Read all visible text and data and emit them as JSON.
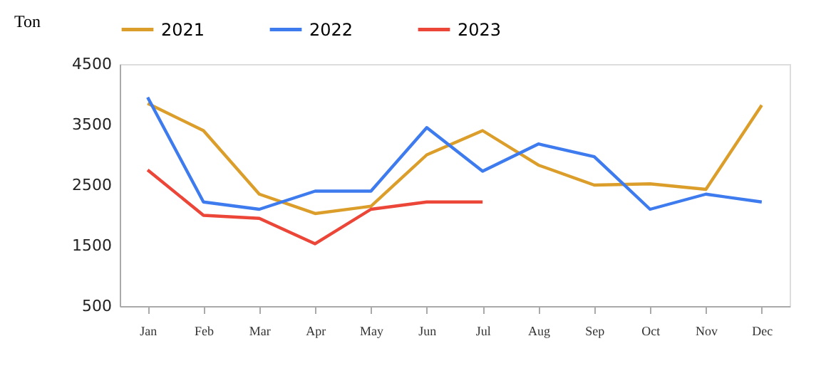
{
  "chart_data": {
    "type": "line",
    "ylabel": "Ton",
    "categories": [
      "Jan",
      "Feb",
      "Mar",
      "Apr",
      "May",
      "Jun",
      "Jul",
      "Aug",
      "Sep",
      "Oct",
      "Nov",
      "Dec"
    ],
    "series": [
      {
        "name": "2021",
        "color": "#dc9e2a",
        "values": [
          3850,
          3400,
          2350,
          2030,
          2150,
          3000,
          3400,
          2830,
          2500,
          2520,
          2430,
          3820
        ]
      },
      {
        "name": "2022",
        "color": "#3d7bef",
        "values": [
          3950,
          2220,
          2100,
          2400,
          2400,
          3450,
          2730,
          3180,
          2970,
          2100,
          2350,
          2220
        ]
      },
      {
        "name": "2023",
        "color": "#ec4638",
        "values": [
          2750,
          2000,
          1950,
          1530,
          2100,
          2220,
          2220,
          null,
          null,
          null,
          null,
          null
        ]
      }
    ],
    "ylim": [
      500,
      4500
    ],
    "yticks": [
      500,
      1500,
      2500,
      3500,
      4500
    ],
    "grid": false,
    "legend": "top",
    "marker": "none",
    "line_style": "solid"
  }
}
